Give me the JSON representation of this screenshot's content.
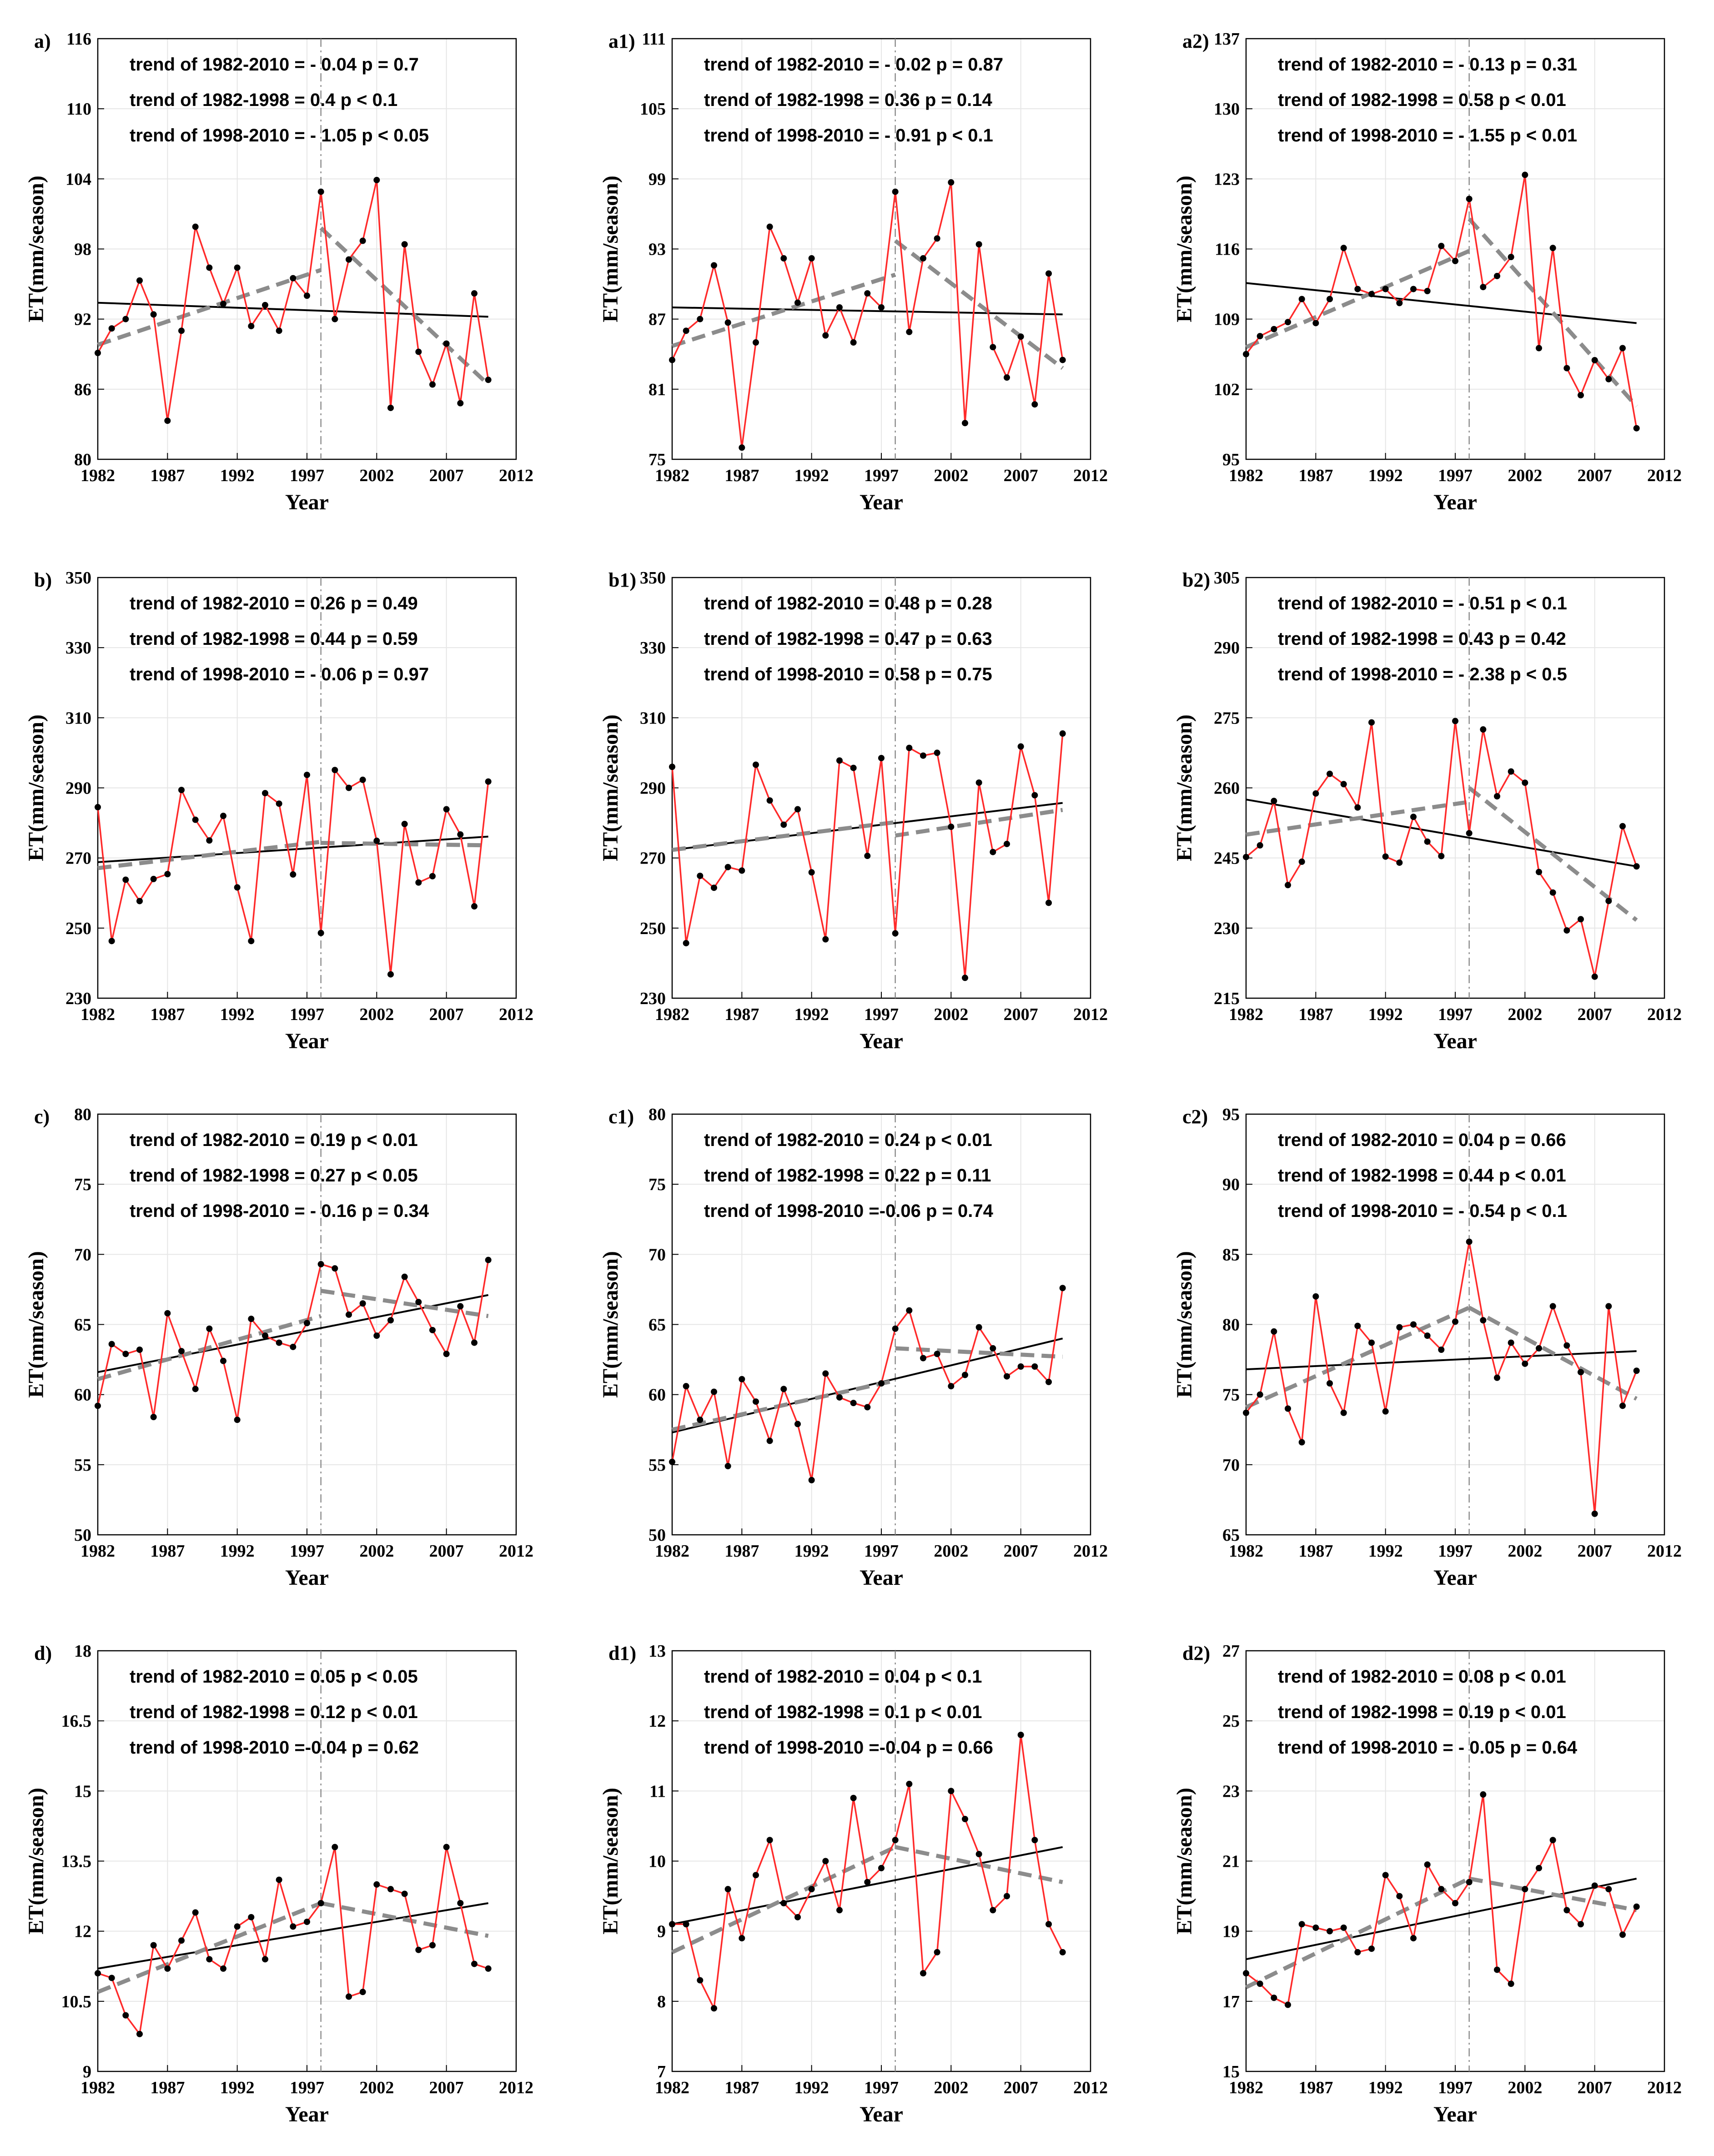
{
  "figure": {
    "xlabel": "Year",
    "ylabel": "ET(mm/season)",
    "xticks": [
      1982,
      1987,
      1992,
      1997,
      2002,
      2007,
      2012
    ],
    "years": [
      1982,
      1983,
      1984,
      1985,
      1986,
      1987,
      1988,
      1989,
      1990,
      1991,
      1992,
      1993,
      1994,
      1995,
      1996,
      1997,
      1998,
      1999,
      2000,
      2001,
      2002,
      2003,
      2004,
      2005,
      2006,
      2007,
      2008,
      2009,
      2010
    ],
    "break_year": 1998,
    "colors": {
      "series": "#ff2a2a",
      "points": "#000000",
      "full_trend": "#000000",
      "piecewise_trend": "#8c8c8c",
      "break_line": "#8c8c8c",
      "grid": "#e6e6e6"
    }
  },
  "chart_data": [
    {
      "id": "a",
      "label": "a)",
      "type": "line",
      "ylim": [
        80,
        116
      ],
      "yticks": [
        "80",
        "86",
        "92",
        "98",
        "104",
        "110",
        "116"
      ],
      "annotations": [
        "trend of 1982-2010 = - 0.04 p = 0.7",
        "trend of 1982-1998 = 0.4 p < 0.1",
        "trend of 1998-2010 = - 1.05 p < 0.05"
      ],
      "values": [
        89.1,
        91.2,
        92,
        95.3,
        92.4,
        83.3,
        91,
        99.9,
        96.4,
        93.3,
        96.4,
        91.4,
        93.2,
        91,
        95.5,
        94,
        102.9,
        92,
        97.1,
        98.7,
        103.9,
        84.4,
        98.4,
        89.2,
        86.4,
        89.9,
        84.8,
        94.2,
        86.8
      ],
      "full_trend": [
        93.4,
        92.2
      ],
      "trend_1": [
        89.8,
        96.2
      ],
      "trend_2": [
        99.8,
        86.4
      ]
    },
    {
      "id": "a1",
      "label": "a1)",
      "type": "line",
      "ylim": [
        75,
        111
      ],
      "yticks": [
        "75",
        "81",
        "87",
        "93",
        "99",
        "105",
        "111"
      ],
      "annotations": [
        "trend of 1982-2010 = - 0.02 p = 0.87",
        "trend of 1982-1998 = 0.36 p = 0.14",
        "trend of 1998-2010 = - 0.91 p < 0.1"
      ],
      "values": [
        83.5,
        86,
        87,
        91.6,
        86.7,
        76,
        85,
        94.9,
        92.2,
        88.4,
        92.2,
        85.6,
        88,
        85,
        89.2,
        88,
        97.9,
        85.9,
        92.2,
        93.9,
        98.7,
        78.1,
        93.4,
        84.6,
        82,
        85.5,
        79.7,
        90.9,
        83.5
      ],
      "full_trend": [
        88,
        87.4
      ],
      "trend_1": [
        84.7,
        90.8
      ],
      "trend_2": [
        93.7,
        82.8
      ]
    },
    {
      "id": "a2",
      "label": "a2)",
      "type": "line",
      "ylim": [
        95,
        137
      ],
      "yticks": [
        "95",
        "102",
        "109",
        "116",
        "123",
        "130",
        "137"
      ],
      "annotations": [
        "trend of 1982-2010 = - 0.13 p = 0.31",
        "trend of 1982-1998 = 0.58 p < 0.01",
        "trend of 1998-2010 = - 1.55 p < 0.01"
      ],
      "values": [
        105.5,
        107.3,
        108,
        108.7,
        111,
        108.6,
        111,
        116.1,
        112,
        111.5,
        112,
        110.6,
        112,
        111.8,
        116.3,
        114.8,
        121,
        112.2,
        113.3,
        115.2,
        123.4,
        106.1,
        116.1,
        104.1,
        101.4,
        104.9,
        103,
        106.1,
        98.1
      ],
      "full_trend": [
        112.6,
        108.6
      ],
      "trend_1": [
        106.2,
        115.8
      ],
      "trend_2": [
        119,
        100.3
      ]
    },
    {
      "id": "b",
      "label": "b)",
      "type": "line",
      "ylim": [
        230,
        350
      ],
      "yticks": [
        "230",
        "250",
        "270",
        "290",
        "310",
        "330",
        "350"
      ],
      "annotations": [
        "trend of 1982-2010 = 0.26 p = 0.49",
        "trend of 1982-1998 = 0.44 p = 0.59",
        "trend of 1998-2010 = - 0.06 p = 0.97"
      ],
      "values": [
        284.5,
        246.3,
        263.8,
        257.7,
        264,
        265.4,
        289.4,
        280.9,
        275,
        282,
        261.6,
        246.3,
        288.5,
        285.5,
        265.3,
        293.7,
        248.6,
        295.1,
        290,
        292.3,
        274.9,
        236.8,
        279.7,
        263,
        264.8,
        283.9,
        276.7,
        256.2,
        291.8
      ],
      "full_trend": [
        268.8,
        276.1
      ],
      "trend_1": [
        267.1,
        274.6
      ],
      "trend_2": [
        274.3,
        273.6
      ]
    },
    {
      "id": "b1",
      "label": "b1)",
      "type": "line",
      "ylim": [
        230,
        350
      ],
      "yticks": [
        "230",
        "250",
        "270",
        "290",
        "310",
        "330",
        "350"
      ],
      "annotations": [
        "trend of 1982-2010 = 0.48 p = 0.28",
        "trend of 1982-1998 = 0.47 p = 0.63",
        "trend of 1998-2010 = 0.58 p = 0.75"
      ],
      "values": [
        296,
        245.7,
        264.9,
        261.5,
        267.4,
        266.4,
        296.6,
        286.4,
        279.5,
        283.9,
        265.9,
        246.8,
        297.8,
        295.7,
        270.6,
        298.5,
        248.5,
        301.4,
        299.2,
        300,
        278.9,
        235.8,
        291.5,
        271.7,
        274,
        301.8,
        287.9,
        257.2,
        305.5
      ],
      "full_trend": [
        272.3,
        285.7
      ],
      "trend_1": [
        272.3,
        280.2
      ],
      "trend_2": [
        276.4,
        283.7
      ]
    },
    {
      "id": "b2",
      "label": "b2)",
      "type": "line",
      "ylim": [
        215,
        305
      ],
      "yticks": [
        "215",
        "230",
        "245",
        "260",
        "275",
        "290",
        "305"
      ],
      "annotations": [
        "trend of 1982-2010 = - 0.51 p < 0.1",
        "trend of 1982-1998 = 0.43 p = 0.42",
        "trend of 1998-2010 = - 2.38 p < 0.5"
      ],
      "values": [
        245.2,
        247.7,
        257.2,
        239.2,
        244.2,
        258.8,
        263,
        260.8,
        255.8,
        274,
        245.3,
        244,
        253.8,
        248.5,
        245.4,
        274.3,
        250.3,
        272.5,
        258.2,
        263.5,
        261.1,
        242,
        237.6,
        229.5,
        231.9,
        219.6,
        235.8,
        251.8,
        243.2
      ],
      "full_trend": [
        257.5,
        243.2
      ],
      "trend_1": [
        250,
        257
      ],
      "trend_2": [
        260,
        231.7
      ]
    },
    {
      "id": "c",
      "label": "c)",
      "type": "line",
      "ylim": [
        50,
        80
      ],
      "yticks": [
        "50",
        "55",
        "60",
        "65",
        "70",
        "75",
        "80"
      ],
      "annotations": [
        "trend of 1982-2010 = 0.19 p < 0.01",
        "trend of 1982-1998 = 0.27 p < 0.05",
        "trend of 1998-2010 = - 0.16 p = 0.34"
      ],
      "values": [
        59.2,
        63.6,
        62.9,
        63.2,
        58.4,
        65.8,
        63.1,
        60.4,
        64.7,
        62.4,
        58.2,
        65.4,
        64.2,
        63.7,
        63.4,
        65.1,
        69.3,
        69,
        65.7,
        66.5,
        64.2,
        65.3,
        68.4,
        66.6,
        64.6,
        62.9,
        66.3,
        63.7,
        69.6
      ],
      "full_trend": [
        61.6,
        67.1
      ],
      "trend_1": [
        61.1,
        65.6
      ],
      "trend_2": [
        67.4,
        65.6
      ]
    },
    {
      "id": "c1",
      "label": "c1)",
      "type": "line",
      "ylim": [
        50,
        80
      ],
      "yticks": [
        "50",
        "55",
        "60",
        "65",
        "70",
        "75",
        "80"
      ],
      "annotations": [
        "trend of 1982-2010 = 0.24 p < 0.01",
        "trend of 1982-1998 = 0.22 p = 0.11",
        "trend of 1998-2010 =-0.06 p = 0.74"
      ],
      "values": [
        55.2,
        60.6,
        58.2,
        60.2,
        54.9,
        61.1,
        59.5,
        56.7,
        60.4,
        57.9,
        53.9,
        61.5,
        59.8,
        59.4,
        59.1,
        60.8,
        64.7,
        66,
        62.6,
        62.9,
        60.6,
        61.4,
        64.8,
        63.3,
        61.3,
        62,
        62,
        60.9,
        67.6
      ],
      "full_trend": [
        57.3,
        64
      ],
      "trend_1": [
        57.5,
        61
      ],
      "trend_2": [
        63.3,
        62.7
      ]
    },
    {
      "id": "c2",
      "label": "c2)",
      "type": "line",
      "ylim": [
        65,
        95
      ],
      "yticks": [
        "65",
        "70",
        "75",
        "80",
        "85",
        "90",
        "95"
      ],
      "annotations": [
        "trend of 1982-2010 = 0.04 p = 0.66",
        "trend of 1982-1998 = 0.44 p < 0.01",
        "trend of 1998-2010 = - 0.54 p < 0.1"
      ],
      "values": [
        73.7,
        75,
        79.5,
        74,
        71.6,
        82,
        75.8,
        73.7,
        79.9,
        78.7,
        73.8,
        79.8,
        80,
        79.2,
        78.2,
        80.2,
        85.9,
        80.3,
        76.2,
        78.7,
        77.2,
        78.3,
        81.3,
        78.5,
        76.6,
        66.5,
        81.3,
        74.2,
        76.7
      ],
      "full_trend": [
        76.8,
        78.1
      ],
      "trend_1": [
        74.1,
        81.2
      ],
      "trend_2": [
        81.2,
        74.7
      ]
    },
    {
      "id": "d",
      "label": "d)",
      "type": "line",
      "ylim": [
        9,
        18
      ],
      "yticks": [
        "9",
        "10.5",
        "12",
        "13.5",
        "15",
        "16.5",
        "18"
      ],
      "annotations": [
        "trend of 1982-2010 = 0.05 p < 0.05",
        "trend of 1982-1998 = 0.12 p < 0.01",
        "trend of 1998-2010 =-0.04 p = 0.62"
      ],
      "values": [
        11.1,
        11,
        10.2,
        9.8,
        11.7,
        11.2,
        11.8,
        12.4,
        11.4,
        11.2,
        12.1,
        12.3,
        11.4,
        13.1,
        12.1,
        12.2,
        12.6,
        13.8,
        10.6,
        10.7,
        13,
        12.9,
        12.8,
        11.6,
        11.7,
        13.8,
        12.6,
        11.3,
        11.2
      ],
      "full_trend": [
        11.2,
        12.6
      ],
      "trend_1": [
        10.7,
        12.6
      ],
      "trend_2": [
        12.6,
        11.9
      ]
    },
    {
      "id": "d1",
      "label": "d1)",
      "type": "line",
      "ylim": [
        7,
        13
      ],
      "yticks": [
        "7",
        "8",
        "9",
        "10",
        "11",
        "12",
        "13"
      ],
      "annotations": [
        "trend of 1982-2010 = 0.04 p < 0.1",
        "trend of 1982-1998 = 0.1 p < 0.01",
        "trend of 1998-2010 =-0.04 p = 0.66"
      ],
      "values": [
        9.1,
        9.1,
        8.3,
        7.9,
        9.6,
        8.9,
        9.8,
        10.3,
        9.4,
        9.2,
        9.6,
        10,
        9.3,
        10.9,
        9.7,
        9.9,
        10.3,
        11.1,
        8.4,
        8.7,
        11,
        10.6,
        10.1,
        9.3,
        9.5,
        11.8,
        10.3,
        9.1,
        8.7
      ],
      "full_trend": [
        9.1,
        10.2
      ],
      "trend_1": [
        8.7,
        10.2
      ],
      "trend_2": [
        10.2,
        9.7
      ]
    },
    {
      "id": "d2",
      "label": "d2)",
      "type": "line",
      "ylim": [
        15,
        27
      ],
      "yticks": [
        "15",
        "17",
        "19",
        "21",
        "23",
        "25",
        "27"
      ],
      "annotations": [
        "trend of 1982-2010 = 0.08 p < 0.01",
        "trend of 1982-1998 = 0.19 p < 0.01",
        "trend of 1998-2010 = - 0.05 p = 0.64"
      ],
      "values": [
        17.8,
        17.5,
        17.1,
        16.9,
        19.2,
        19.1,
        19,
        19.1,
        18.4,
        18.5,
        20.6,
        20,
        18.8,
        20.9,
        20.2,
        19.8,
        20.4,
        22.9,
        17.9,
        17.5,
        20.2,
        20.8,
        21.6,
        19.6,
        19.2,
        20.3,
        20.2,
        18.9,
        19.7
      ],
      "full_trend": [
        18.2,
        20.5
      ],
      "trend_1": [
        17.4,
        20.5
      ],
      "trend_2": [
        20.5,
        19.6
      ]
    }
  ]
}
